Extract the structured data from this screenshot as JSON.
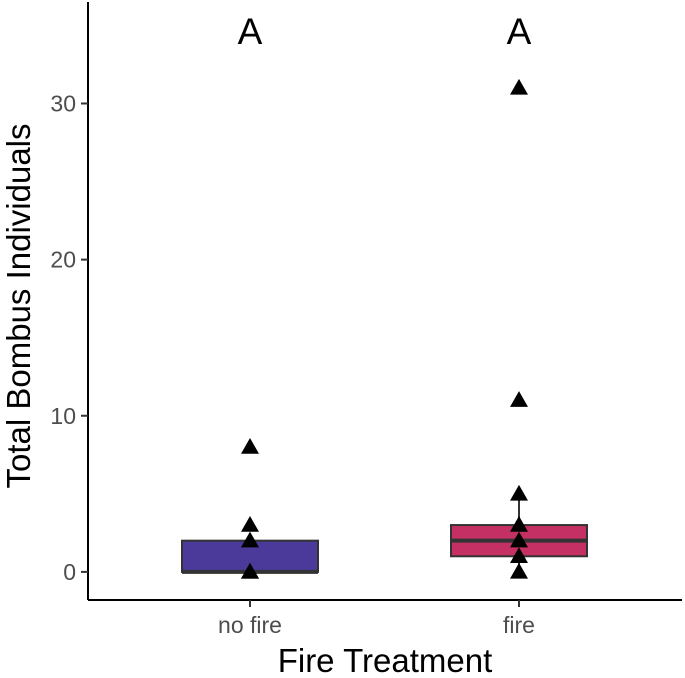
{
  "chart_data": {
    "type": "boxplot",
    "xlabel": "Fire Treatment",
    "ylabel": "Total Bombus Individuals",
    "ylim": [
      -1.8,
      36.5
    ],
    "yticks": [
      0,
      10,
      20,
      30
    ],
    "grid": false,
    "categories": [
      "no fire",
      "fire"
    ],
    "significance_letters": [
      "A",
      "A"
    ],
    "boxes": [
      {
        "category": "no fire",
        "color": "#4b3a9a",
        "min": 0,
        "q1": 0,
        "median": 0,
        "q3": 2,
        "max": 2
      },
      {
        "category": "fire",
        "color": "#c43064",
        "min": 0,
        "q1": 1,
        "median": 2,
        "q3": 3,
        "max": 5
      }
    ],
    "points": [
      {
        "category": "no fire",
        "values": [
          0,
          0,
          2,
          3,
          8
        ]
      },
      {
        "category": "fire",
        "values": [
          0,
          1,
          2,
          3,
          5,
          11,
          31
        ]
      }
    ],
    "point_shape": "triangle"
  }
}
